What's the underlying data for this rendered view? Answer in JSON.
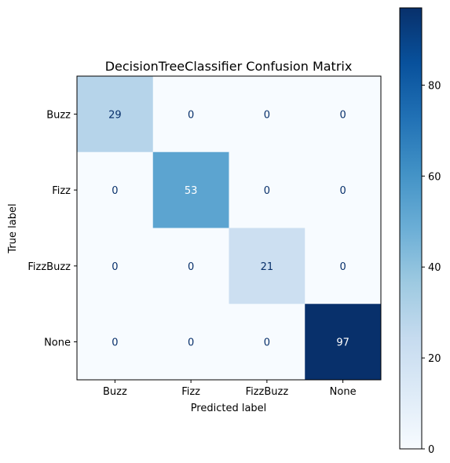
{
  "chart_data": {
    "type": "heatmap",
    "title": "DecisionTreeClassifier Confusion Matrix",
    "xlabel": "Predicted label",
    "ylabel": "True label",
    "x_categories": [
      "Buzz",
      "Fizz",
      "FizzBuzz",
      "None"
    ],
    "y_categories": [
      "Buzz",
      "Fizz",
      "FizzBuzz",
      "None"
    ],
    "values": [
      [
        29,
        0,
        0,
        0
      ],
      [
        0,
        53,
        0,
        0
      ],
      [
        0,
        0,
        21,
        0
      ],
      [
        0,
        0,
        0,
        97
      ]
    ],
    "colormap": "Blues",
    "colorbar": {
      "range": [
        0,
        97
      ],
      "ticks": [
        "0",
        "20",
        "40",
        "60",
        "80"
      ]
    },
    "text_colors": {
      "dark_cell": "#ffffff",
      "light_cell": "#08306b"
    }
  }
}
